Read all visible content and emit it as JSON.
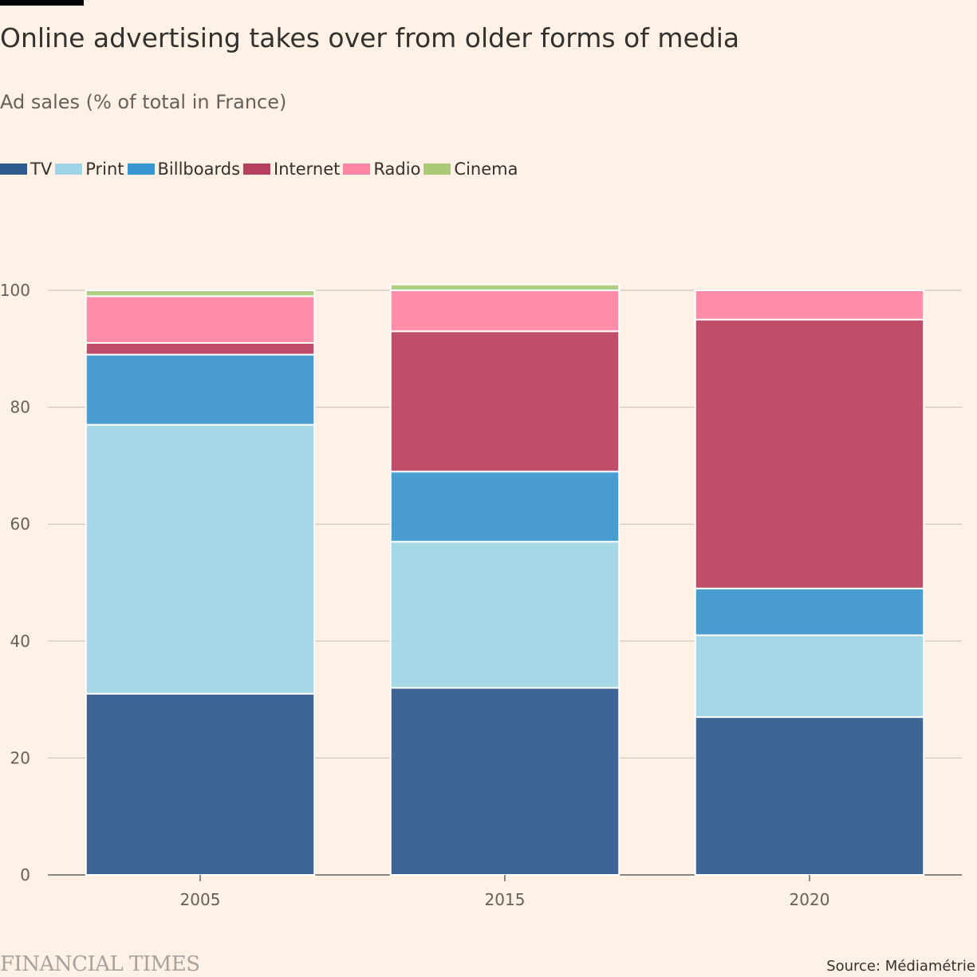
{
  "header": {
    "title": "Online advertising takes over from older forms of media",
    "subtitle": "Ad sales (% of total in France)"
  },
  "footer": {
    "logo": "FINANCIAL TIMES",
    "source": "Source: Médiamétrie"
  },
  "chart_data": {
    "type": "bar",
    "stacked": true,
    "categories": [
      "2005",
      "2015",
      "2020"
    ],
    "series": [
      {
        "name": "TV",
        "color": "#2c5a8f",
        "values": [
          31,
          32,
          27
        ]
      },
      {
        "name": "Print",
        "color": "#9dd5e6",
        "values": [
          46,
          25,
          14
        ]
      },
      {
        "name": "Billboards",
        "color": "#3a96cf",
        "values": [
          12,
          12,
          8
        ]
      },
      {
        "name": "Internet",
        "color": "#b8405f",
        "values": [
          2,
          24,
          46
        ]
      },
      {
        "name": "Radio",
        "color": "#ff84a5",
        "values": [
          8,
          7,
          5
        ]
      },
      {
        "name": "Cinema",
        "color": "#a9ca78",
        "values": [
          1,
          1,
          0
        ]
      }
    ],
    "ylim": [
      0,
      100
    ],
    "yticks": [
      0,
      20,
      40,
      60,
      80,
      100
    ],
    "grid": true,
    "legend": "top-left"
  }
}
